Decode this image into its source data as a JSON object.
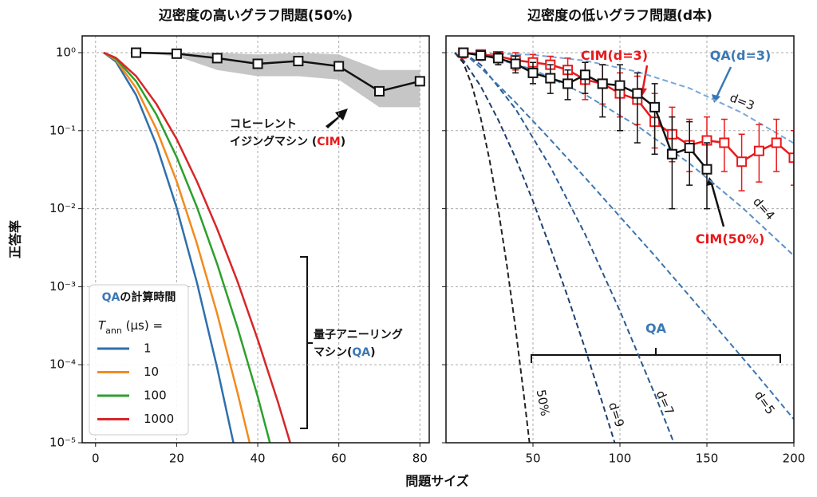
{
  "shared_axes": {
    "xlabel": "問題サイズ",
    "ylabel": "正答率"
  },
  "chart_data": [
    {
      "type": "line",
      "title": "辺密度の高いグラフ問題(50%)",
      "yscale": "log",
      "grid": true,
      "show_ytick_labels": true,
      "xlim": [
        -3.3,
        82.3
      ],
      "ylim": [
        1e-05,
        1.64
      ],
      "xticks": [
        0,
        20,
        40,
        60,
        80
      ],
      "yticks": [
        {
          "value": 1e-05,
          "label": "10⁻⁵"
        },
        {
          "value": 0.0001,
          "label": "10⁻⁴"
        },
        {
          "value": 0.001,
          "label": "10⁻³"
        },
        {
          "value": 0.01,
          "label": "10⁻²"
        },
        {
          "value": 0.1,
          "label": "10⁻¹"
        },
        {
          "value": 1,
          "label": "10⁰"
        }
      ],
      "legend": {
        "corner": "lower left",
        "title": [
          {
            "text": "QA",
            "color": "#3a78b5"
          },
          {
            "text": "の計算時間"
          }
        ],
        "header": [
          {
            "text": "T",
            "style": "italic"
          },
          {
            "text": "ann",
            "style": "sub"
          },
          {
            "text": " (μs) ="
          }
        ]
      },
      "series": [
        {
          "name": "1",
          "color": "#2f6fad",
          "style": "solid",
          "x": [
            2,
            5,
            10,
            15,
            20,
            25,
            30,
            34
          ],
          "values": [
            1,
            0.77,
            0.286,
            0.066,
            0.0103,
            0.00113,
            9.1e-05,
            1e-05
          ]
        },
        {
          "name": "10",
          "color": "#f28a1e",
          "style": "solid",
          "x": [
            2,
            5,
            10,
            15,
            20,
            25,
            30,
            35,
            38
          ],
          "values": [
            1,
            0.81,
            0.353,
            0.105,
            0.0224,
            0.00357,
            0.00045,
            4.4e-05,
            1e-05
          ]
        },
        {
          "name": "100",
          "color": "#2ca02c",
          "style": "solid",
          "x": [
            2,
            5,
            10,
            15,
            20,
            25,
            30,
            35,
            40,
            43
          ],
          "values": [
            1,
            0.84,
            0.43,
            0.161,
            0.046,
            0.0105,
            0.00195,
            0.0003,
            3.9e-05,
            1e-05
          ]
        },
        {
          "name": "1000",
          "color": "#d62728",
          "style": "solid",
          "x": [
            2,
            5,
            10,
            15,
            20,
            25,
            30,
            35,
            40,
            45,
            48
          ],
          "values": [
            1,
            0.86,
            0.5,
            0.22,
            0.078,
            0.0224,
            0.0055,
            0.00117,
            0.00021,
            3.3e-05,
            1e-05
          ]
        },
        {
          "color": "#111111",
          "style": "solid",
          "marker": "square",
          "band_color": "#b8b8b8",
          "x": [
            10,
            20,
            30,
            40,
            50,
            60,
            70,
            80
          ],
          "values": [
            1,
            0.97,
            0.85,
            0.72,
            0.78,
            0.67,
            0.32,
            0.43
          ],
          "band_low": [
            1,
            0.9,
            0.6,
            0.5,
            0.5,
            0.45,
            0.2,
            0.2
          ],
          "band_high": [
            1,
            1,
            1,
            0.95,
            1,
            0.95,
            0.6,
            0.6
          ]
        }
      ],
      "annotations": [
        {
          "lines": [
            [
              {
                "text": "コヒーレント"
              }
            ],
            [
              {
                "text": "イジングマシン ("
              },
              {
                "text": "CIM",
                "color": "#e8191b"
              },
              {
                "text": ")"
              }
            ]
          ]
        },
        {
          "lines": [
            [
              {
                "text": "量子アニーリング"
              }
            ],
            [
              {
                "text": "マシン("
              },
              {
                "text": "QA",
                "color": "#3a78b5"
              },
              {
                "text": ")"
              }
            ]
          ]
        }
      ]
    },
    {
      "type": "line",
      "title": "辺密度の低いグラフ問題(d本)",
      "yscale": "log",
      "grid": true,
      "show_ytick_labels": false,
      "xlim": [
        0,
        200
      ],
      "ylim": [
        1e-05,
        1.64
      ],
      "xticks": [
        50,
        100,
        150,
        200
      ],
      "yticks": [
        1e-05,
        0.0001,
        0.001,
        0.01,
        0.1,
        1
      ],
      "series": [
        {
          "name": "50%",
          "color": "#222222",
          "style": "dashed",
          "x": [
            5,
            10,
            15,
            20,
            25,
            30,
            35,
            40,
            45,
            48
          ],
          "values": [
            1,
            0.74,
            0.376,
            0.144,
            0.0426,
            0.01,
            0.00188,
            0.00029,
            3.7e-05,
            1e-05
          ]
        },
        {
          "name": "d=9",
          "color": "#1f3f6e",
          "style": "dashed",
          "x": [
            5,
            10,
            20,
            30,
            40,
            50,
            60,
            70,
            80,
            90,
            97
          ],
          "values": [
            1,
            0.8,
            0.37,
            0.138,
            0.0447,
            0.0125,
            0.00316,
            0.00074,
            0.00016,
            3.2e-05,
            1e-05
          ]
        },
        {
          "name": "d=7",
          "color": "#2a5a90",
          "style": "dashed",
          "x": [
            10,
            20,
            40,
            60,
            80,
            100,
            120,
            131
          ],
          "values": [
            1,
            0.7,
            0.19,
            0.0344,
            0.0047,
            0.00049,
            4.2e-05,
            1e-05
          ]
        },
        {
          "name": "d=5",
          "color": "#3b76b0",
          "style": "dashed",
          "x": [
            10,
            20,
            40,
            60,
            80,
            100,
            120,
            140,
            160,
            180,
            200
          ],
          "values": [
            1,
            0.64,
            0.23,
            0.077,
            0.025,
            0.0079,
            0.0025,
            0.00076,
            0.00023,
            6.9e-05,
            2e-05
          ]
        },
        {
          "name": "d=4",
          "color": "#5a90c8",
          "style": "dashed",
          "x": [
            10,
            20,
            50,
            80,
            110,
            140,
            170,
            200
          ],
          "values": [
            1,
            0.95,
            0.61,
            0.29,
            0.115,
            0.038,
            0.0105,
            0.0025
          ]
        },
        {
          "name": "d=3",
          "color": "#7aa8d8",
          "style": "dashed",
          "x": [
            10,
            50,
            80,
            110,
            140,
            170,
            200
          ],
          "values": [
            1,
            0.94,
            0.79,
            0.57,
            0.35,
            0.17,
            0.069
          ]
        },
        {
          "color": "#e8191b",
          "style": "solid",
          "marker": "square",
          "x": [
            10,
            20,
            30,
            40,
            50,
            60,
            70,
            80,
            90,
            100,
            110,
            120,
            130,
            140,
            150,
            160,
            170,
            180,
            190,
            200
          ],
          "values": [
            1,
            0.95,
            0.9,
            0.8,
            0.75,
            0.7,
            0.6,
            0.45,
            0.4,
            0.3,
            0.25,
            0.13,
            0.09,
            0.065,
            0.075,
            0.07,
            0.04,
            0.055,
            0.07,
            0.045
          ],
          "lower": [
            0.85,
            0.8,
            0.7,
            0.6,
            0.55,
            0.5,
            0.4,
            0.25,
            0.22,
            0.15,
            0.12,
            0.06,
            0.04,
            0.03,
            0.035,
            0.03,
            0.017,
            0.022,
            0.03,
            0.02
          ],
          "upper": [
            1,
            1,
            1,
            1,
            0.95,
            0.9,
            0.85,
            0.75,
            0.7,
            0.55,
            0.5,
            0.3,
            0.2,
            0.14,
            0.15,
            0.14,
            0.09,
            0.12,
            0.14,
            0.1
          ]
        },
        {
          "color": "#111111",
          "style": "solid",
          "marker": "square",
          "x": [
            10,
            20,
            30,
            40,
            50,
            60,
            70,
            80,
            90,
            100,
            110,
            120,
            130,
            140,
            150
          ],
          "values": [
            1,
            0.92,
            0.85,
            0.72,
            0.55,
            0.47,
            0.4,
            0.52,
            0.4,
            0.38,
            0.3,
            0.2,
            0.05,
            0.06,
            0.032
          ],
          "lower": [
            0.9,
            0.8,
            0.7,
            0.55,
            0.4,
            0.3,
            0.25,
            0.3,
            0.15,
            0.1,
            0.07,
            0.05,
            0.01,
            0.02,
            0.01
          ],
          "upper": [
            1,
            1,
            1,
            0.9,
            0.75,
            0.7,
            0.6,
            0.75,
            0.7,
            0.7,
            0.55,
            0.4,
            0.15,
            0.13,
            0.07
          ]
        }
      ],
      "annotations": [
        {
          "lines": [
            [
              {
                "text": "CIM(d=3)",
                "color": "#e8191b"
              }
            ]
          ]
        },
        {
          "lines": [
            [
              {
                "text": "QA(d=3)",
                "color": "#3a78b5"
              }
            ]
          ]
        },
        {
          "lines": [
            [
              {
                "text": "CIM(50%)",
                "color": "#e8191b"
              }
            ]
          ]
        },
        {
          "lines": [
            [
              {
                "text": "QA",
                "color": "#3a78b5"
              }
            ]
          ]
        }
      ]
    }
  ]
}
